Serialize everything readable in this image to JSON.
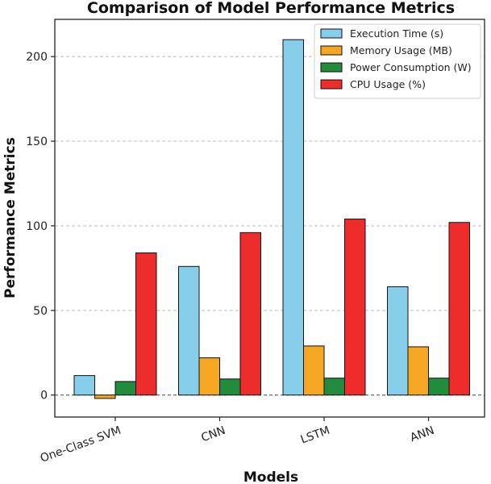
{
  "chart_data": {
    "type": "bar",
    "title": "Comparison of Model Performance Metrics",
    "xlabel": "Models",
    "ylabel": "Performance Metrics",
    "categories": [
      "One-Class SVM",
      "CNN",
      "LSTM",
      "ANN"
    ],
    "series": [
      {
        "name": "Execution Time (s)",
        "color": "#87ceeb",
        "values": [
          11.5,
          76,
          210,
          64
        ]
      },
      {
        "name": "Memory Usage (MB)",
        "color": "#f5a623",
        "values": [
          -2,
          22,
          29,
          28.5
        ]
      },
      {
        "name": "Power Consumption (W)",
        "color": "#228b3c",
        "values": [
          8,
          9.5,
          10,
          10
        ]
      },
      {
        "name": "CPU Usage (%)",
        "color": "#ee2c2c",
        "values": [
          84,
          96,
          104,
          102
        ]
      }
    ],
    "yticks": [
      0,
      50,
      100,
      150,
      200
    ],
    "ylim": [
      -13,
      222
    ],
    "grid": true,
    "legend_position": "top-right"
  }
}
